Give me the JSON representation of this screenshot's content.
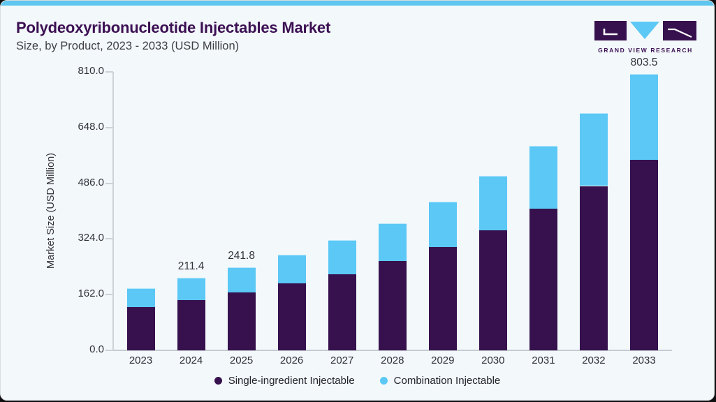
{
  "header": {
    "title": "Polydeoxyribonucleotide Injectables Market",
    "subtitle": "Size, by Product, 2023 - 2033 (USD Million)",
    "logo_text": "GRAND VIEW RESEARCH"
  },
  "colors": {
    "accent_bar": "#5fc6ef",
    "title_purple": "#3c1053",
    "card_background": "#f3f8fb",
    "single_ingredient": "#36114d",
    "combination": "#5bc8f5"
  },
  "chart_data": {
    "type": "bar",
    "stacked": true,
    "title": "Polydeoxyribonucleotide Injectables Market Size, by Product, 2023 - 2033 (USD Million)",
    "ylabel": "Market Size (USD Million)",
    "xlabel": "",
    "grid": false,
    "legend_position": "bottom",
    "ylim": [
      0,
      810
    ],
    "yticks": [
      0.0,
      162.0,
      324.0,
      486.0,
      648.0,
      810.0
    ],
    "ytick_labels": [
      "0.0",
      "162.0",
      "324.0",
      "486.0",
      "648.0",
      "810.0"
    ],
    "categories": [
      "2023",
      "2024",
      "2025",
      "2026",
      "2027",
      "2028",
      "2029",
      "2030",
      "2031",
      "2032",
      "2033"
    ],
    "series": [
      {
        "name": "Single-ingredient Injectable",
        "color": "#36114d",
        "values": [
          126.0,
          147.0,
          168.5,
          194.0,
          222.0,
          260.5,
          301.0,
          350.0,
          412.0,
          478.0,
          555.0
        ]
      },
      {
        "name": "Combination Injectable",
        "color": "#5bc8f5",
        "values": [
          54.0,
          64.4,
          73.3,
          85.0,
          98.0,
          109.5,
          131.0,
          158.0,
          182.0,
          212.0,
          248.5
        ]
      }
    ],
    "totals": [
      180.0,
      211.4,
      241.8,
      279.0,
      320.0,
      370.0,
      432.0,
      508.0,
      594.0,
      690.0,
      803.5
    ],
    "bar_labels": [
      "",
      "211.4",
      "241.8",
      "",
      "",
      "",
      "",
      "",
      "",
      "",
      "803.5"
    ]
  }
}
